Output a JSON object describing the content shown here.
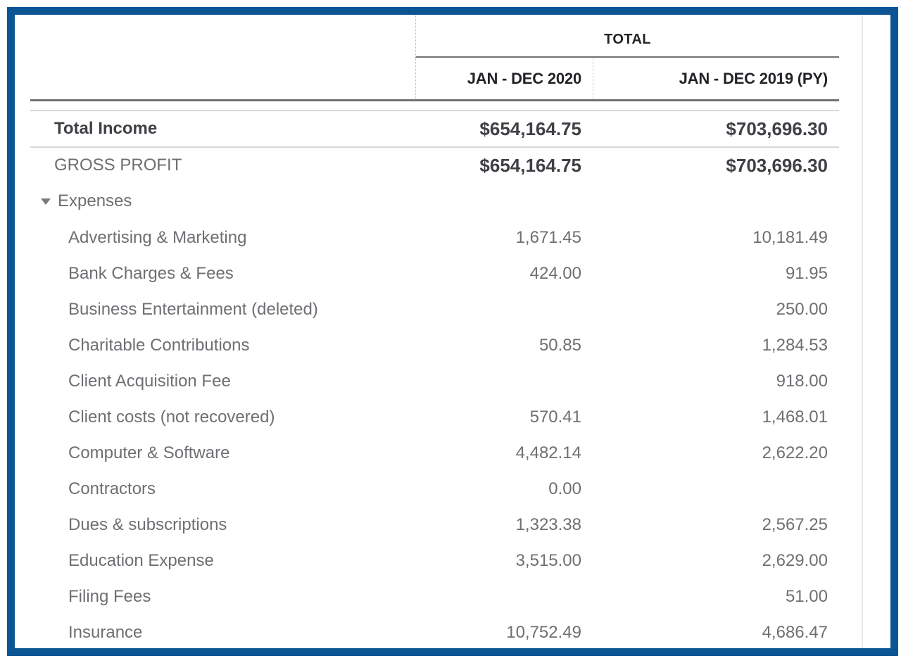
{
  "report": {
    "header": {
      "total_label": "TOTAL",
      "columns": [
        "JAN - DEC 2020",
        "JAN - DEC 2019 (PY)"
      ]
    },
    "summary_rows": [
      {
        "label": "Total Income",
        "values": [
          "$654,164.75",
          "$703,696.30"
        ]
      },
      {
        "label": "GROSS PROFIT",
        "values": [
          "$654,164.75",
          "$703,696.30"
        ]
      }
    ],
    "expenses_section": {
      "label": "Expenses",
      "collapse_icon": "triangle-down-icon",
      "rows": [
        {
          "label": "Advertising & Marketing",
          "values": [
            "1,671.45",
            "10,181.49"
          ]
        },
        {
          "label": "Bank Charges & Fees",
          "values": [
            "424.00",
            "91.95"
          ]
        },
        {
          "label": "Business Entertainment (deleted)",
          "values": [
            "",
            "250.00"
          ]
        },
        {
          "label": "Charitable Contributions",
          "values": [
            "50.85",
            "1,284.53"
          ]
        },
        {
          "label": "Client Acquisition Fee",
          "values": [
            "",
            "918.00"
          ]
        },
        {
          "label": "Client costs (not recovered)",
          "values": [
            "570.41",
            "1,468.01"
          ]
        },
        {
          "label": "Computer & Software",
          "values": [
            "4,482.14",
            "2,622.20"
          ]
        },
        {
          "label": "Contractors",
          "values": [
            "0.00",
            ""
          ]
        },
        {
          "label": "Dues & subscriptions",
          "values": [
            "1,323.38",
            "2,567.25"
          ]
        },
        {
          "label": "Education Expense",
          "values": [
            "3,515.00",
            "2,629.00"
          ]
        },
        {
          "label": "Filing Fees",
          "values": [
            "",
            "51.00"
          ]
        },
        {
          "label": "Insurance",
          "values": [
            "10,752.49",
            "4,686.47"
          ]
        }
      ]
    },
    "colors": {
      "focus_border_blue": "#0C5594",
      "header_text": "#212327",
      "emphasis_text": "#3F4045",
      "body_text": "#6E6F73",
      "dark_rule": "#707175",
      "light_rule": "#D6D8DB",
      "dotted_rule": "#B9BDC4"
    }
  }
}
